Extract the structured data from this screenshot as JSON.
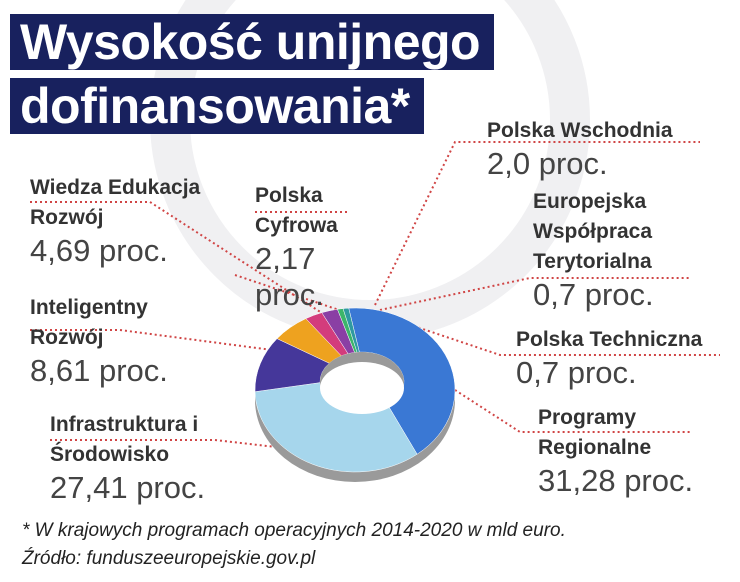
{
  "chart_data": {
    "type": "donut",
    "title": "Wysokość unijnego dofinansowania*",
    "categories": [
      "Programy Regionalne",
      "Infrastruktura i Środowisko",
      "Inteligentny Rozwój",
      "Wiedza Edukacja Rozwój",
      "Polska Cyfrowa",
      "Polska Wschodnia",
      "Europejska Współpraca Terytorialna",
      "Polska Techniczna"
    ],
    "values": [
      31.28,
      27.41,
      8.61,
      4.69,
      2.17,
      2.0,
      0.7,
      0.7
    ],
    "value_labels": [
      "31,28 proc.",
      "27,41 proc.",
      "8,61 proc.",
      "4,69 proc.",
      "2,17 proc.",
      "2,0 proc.",
      "0,7 proc.",
      "0,7 proc."
    ],
    "colors": [
      "#3a78d4",
      "#a6d6ec",
      "#45379a",
      "#eea21f",
      "#d33c7c",
      "#8a3fa4",
      "#3cb56a",
      "#2f9aa0"
    ],
    "notes": [
      "* W krajowych programach operacyjnych 2014-2020 w mld euro.",
      "Źródło: funduszeeuropejskie.gov.pl"
    ]
  }
}
